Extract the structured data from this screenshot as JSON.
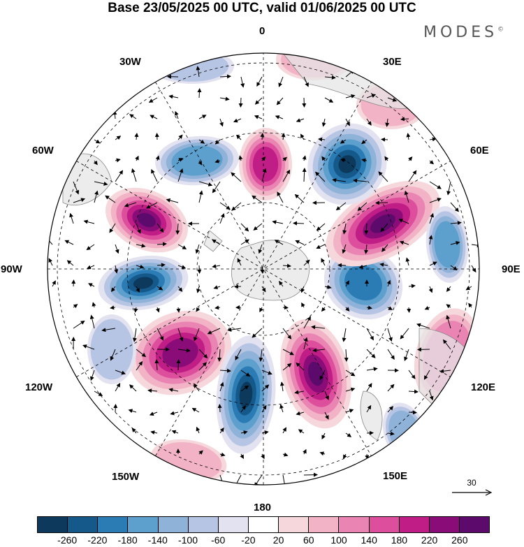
{
  "title": "Base 23/05/2025 00 UTC, valid 01/06/2025 00 UTC",
  "logo_text": "MODES",
  "logo_mark": "©",
  "longitude_labels": {
    "l0": "0",
    "l30e": "30E",
    "l60e": "60E",
    "l90e": "90E",
    "l120e": "120E",
    "l150e": "150E",
    "l180": "180",
    "l150w": "150W",
    "l120w": "120W",
    "l90w": "90W",
    "l60w": "60W",
    "l30w": "30W"
  },
  "reference_vector": "30",
  "colorbar": {
    "colors": [
      "#0d3a5c",
      "#15598a",
      "#2b7bb4",
      "#5d9fcd",
      "#8fb2d9",
      "#b7c5e4",
      "#e2e2f0",
      "#ffffff",
      "#f6d7dc",
      "#f1b3c5",
      "#ea85b3",
      "#dd4f9d",
      "#c01e86",
      "#8a0c78",
      "#5c0b6d"
    ],
    "tick_labels": [
      "-260",
      "-220",
      "-180",
      "-140",
      "-100",
      "-60",
      "-20",
      "20",
      "60",
      "100",
      "140",
      "180",
      "220",
      "260"
    ]
  },
  "colors": {
    "land": "#e6e6e6",
    "coast": "#888888",
    "grid": "#000000"
  }
}
